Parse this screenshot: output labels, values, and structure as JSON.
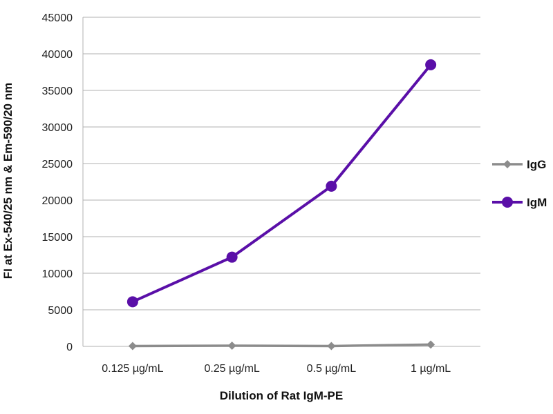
{
  "chart_data": {
    "type": "line",
    "title": "",
    "xlabel": "Dilution of Rat IgM-PE",
    "ylabel": "FI at Ex-540/25 nm & Em-590/20 nm",
    "categories": [
      "0.125 µg/mL",
      "0.25 µg/mL",
      "0.5 µg/mL",
      "1 µg/mL"
    ],
    "ylim": [
      0,
      45000
    ],
    "yticks": [
      0,
      5000,
      10000,
      15000,
      20000,
      25000,
      30000,
      35000,
      40000,
      45000
    ],
    "grid": true,
    "legend": "right",
    "series": [
      {
        "name": "IgG",
        "values": [
          50,
          100,
          50,
          250
        ],
        "color": "#8c8c8c",
        "marker": "diamond"
      },
      {
        "name": "IgM",
        "values": [
          6100,
          12200,
          21900,
          38500
        ],
        "color": "#5a0fa8",
        "marker": "circle"
      }
    ]
  }
}
